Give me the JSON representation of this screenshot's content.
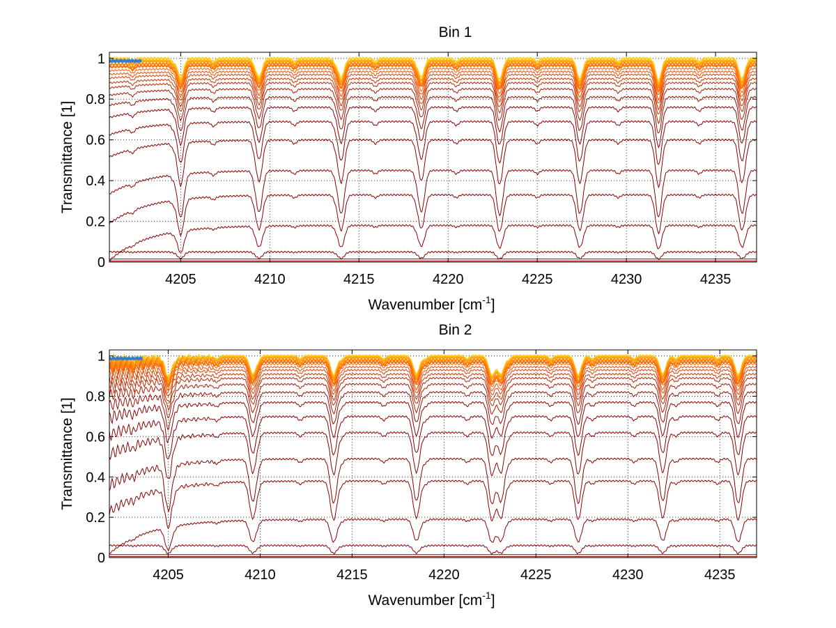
{
  "figure": {
    "background": "#ffffff"
  },
  "chart_data": [
    {
      "type": "line",
      "title": "Bin 1",
      "xlabel_main": "Wavenumber [cm",
      "xlabel_sup": "-1",
      "xlabel_end": "]",
      "ylabel": "Transmittance [1]",
      "xlim": [
        4201.0,
        4237.3
      ],
      "ylim": [
        0,
        1.03
      ],
      "xticks": [
        4205,
        4210,
        4215,
        4220,
        4225,
        4230,
        4235
      ],
      "xtick_labels": [
        "4205",
        "4210",
        "4215",
        "4220",
        "4225",
        "4230",
        "4235"
      ],
      "yticks": [
        0,
        0.2,
        0.4,
        0.6,
        0.8,
        1
      ],
      "ytick_labels": [
        "0",
        "0.2",
        "0.4",
        "0.6",
        "0.8",
        "1"
      ],
      "grid": true,
      "line_centers": [
        4205.0,
        4209.4,
        4214.0,
        4218.5,
        4222.9,
        4227.4,
        4231.8,
        4236.5
      ],
      "baselines": [
        1.0,
        0.99,
        0.985,
        0.975,
        0.965,
        0.95,
        0.935,
        0.92,
        0.9,
        0.88,
        0.85,
        0.81,
        0.76,
        0.69,
        0.6,
        0.45,
        0.33,
        0.18,
        0.05,
        0.015,
        0.005
      ],
      "colors": {
        "weak": "#ffd21e",
        "mid": "#ff5a00",
        "strong": "#8b0000",
        "extra": "#2a7bd8"
      }
    },
    {
      "type": "line",
      "title": "Bin 2",
      "xlabel_main": "Wavenumber [cm",
      "xlabel_sup": "-1",
      "xlabel_end": "]",
      "ylabel": "Transmittance [1]",
      "xlim": [
        4201.8,
        4237.0
      ],
      "ylim": [
        0,
        1.03
      ],
      "xticks": [
        4205,
        4210,
        4215,
        4220,
        4225,
        4230,
        4235
      ],
      "xtick_labels": [
        "4205",
        "4210",
        "4215",
        "4220",
        "4225",
        "4230",
        "4235"
      ],
      "yticks": [
        0,
        0.2,
        0.4,
        0.6,
        0.8,
        1
      ],
      "ytick_labels": [
        "0",
        "0.2",
        "0.4",
        "0.6",
        "0.8",
        "1"
      ],
      "grid": true,
      "line_centers": [
        4205.0,
        4209.6,
        4214.0,
        4218.5,
        4222.6,
        4223.1,
        4227.3,
        4231.9,
        4236.0
      ],
      "baselines": [
        1.0,
        0.995,
        0.99,
        0.98,
        0.97,
        0.96,
        0.945,
        0.93,
        0.91,
        0.89,
        0.86,
        0.82,
        0.77,
        0.7,
        0.62,
        0.49,
        0.38,
        0.19,
        0.06,
        0.015,
        0.005
      ],
      "colors": {
        "weak": "#ffd21e",
        "mid": "#ff5a00",
        "strong": "#8b0000",
        "extra": "#2a7bd8"
      }
    }
  ]
}
